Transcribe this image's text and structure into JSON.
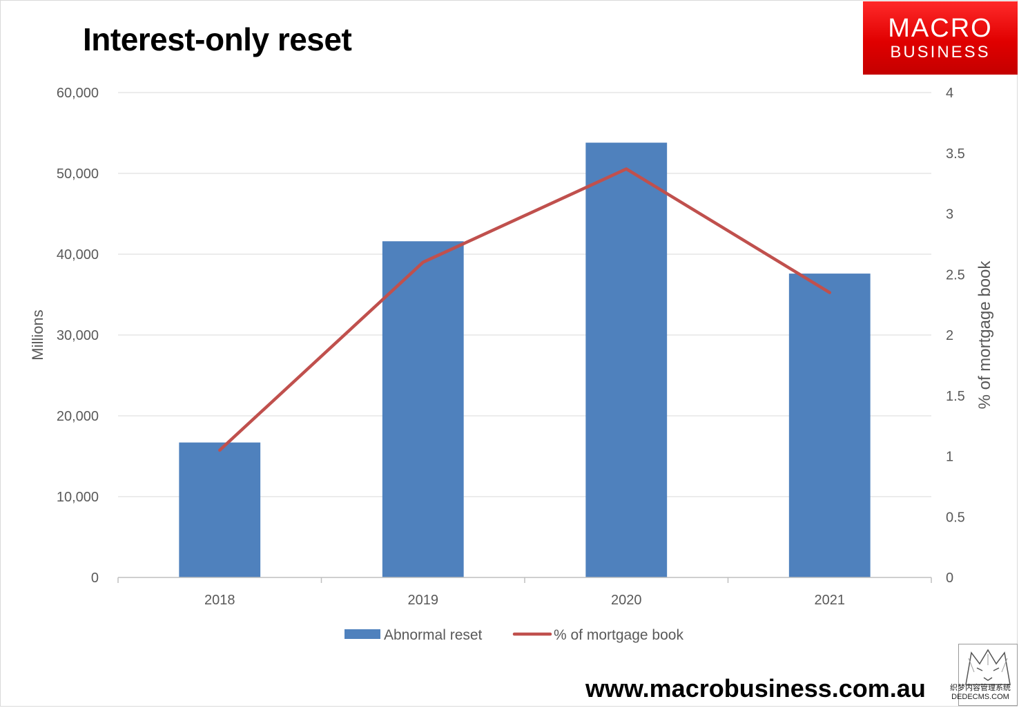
{
  "header": {
    "title": "Interest-only reset",
    "logo_line1": "MACRO",
    "logo_line2": "BUSINESS"
  },
  "footer": {
    "website": "www.macrobusiness.com.au",
    "watermark_line1": "织梦内容管理系统",
    "watermark_line2": "DEDECMS.COM"
  },
  "chart_data": {
    "type": "bar",
    "title": "Interest-only reset",
    "categories": [
      "2018",
      "2019",
      "2020",
      "2021"
    ],
    "series": [
      {
        "name": "Abnormal reset",
        "type": "bar",
        "axis": "left",
        "color": "#4f81bd",
        "values": [
          16700,
          41600,
          53800,
          37600
        ]
      },
      {
        "name": "% of mortgage book",
        "type": "line",
        "axis": "right",
        "color": "#c0504d",
        "values": [
          1.05,
          2.6,
          3.37,
          2.35
        ]
      }
    ],
    "ylabel": "Millions",
    "y2label": "% of mortgage book",
    "ylim": [
      0,
      60000
    ],
    "y2lim": [
      0,
      4
    ],
    "yticks": [
      "0",
      "10,000",
      "20,000",
      "30,000",
      "40,000",
      "50,000",
      "60,000"
    ],
    "y2ticks": [
      "0",
      "0.5",
      "1",
      "1.5",
      "2",
      "2.5",
      "3",
      "3.5",
      "4"
    ],
    "grid": true,
    "legend_position": "bottom"
  }
}
